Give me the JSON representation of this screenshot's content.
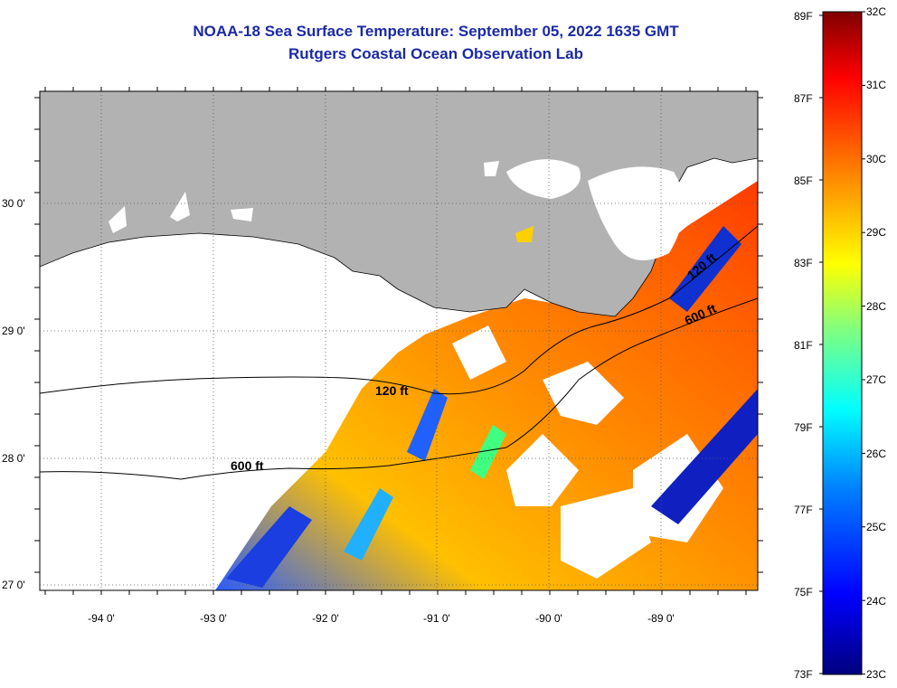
{
  "title": {
    "line1": "NOAA-18 Sea Surface Temperature:  September 05, 2022 1635 GMT",
    "line2": "Rutgers Coastal Ocean Observation Lab"
  },
  "map": {
    "x_ticks": [
      "-94 0'",
      "-93 0'",
      "-92 0'",
      "-91 0'",
      "-90 0'",
      "-89 0'"
    ],
    "y_ticks": [
      "30 0'",
      "29 0'",
      "28 0'",
      "27 0'"
    ],
    "contour_labels": [
      "120 ft",
      "600 ft",
      "120 ft",
      "600 ft"
    ],
    "land_color": "#b2b2b2",
    "cloud_color": "#ffffff"
  },
  "colorbar": {
    "fahrenheit": [
      "89F",
      "87F",
      "85F",
      "83F",
      "81F",
      "79F",
      "77F",
      "75F",
      "73F"
    ],
    "celsius": [
      "32C",
      "31C",
      "30C",
      "29C",
      "28C",
      "27C",
      "26C",
      "25C",
      "24C",
      "23C"
    ],
    "colors": [
      "#000080",
      "#0000ff",
      "#0080ff",
      "#00ffff",
      "#80ff80",
      "#ffff00",
      "#ff8000",
      "#ff0000",
      "#800000"
    ]
  }
}
